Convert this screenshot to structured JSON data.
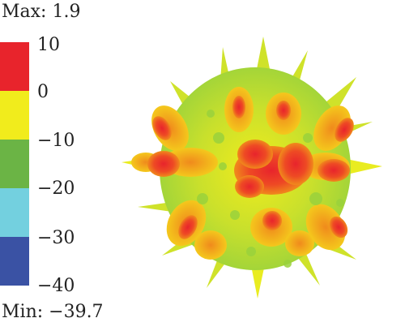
{
  "legend": {
    "max_label": "Max: 1.9",
    "min_label": "Min: −39.7",
    "ticks": [
      "10",
      "0",
      "−10",
      "−20",
      "−30",
      "−40"
    ],
    "colors": [
      "#e8242c",
      "#f1ec1c",
      "#6bb445",
      "#73d0df",
      "#3a52a4"
    ]
  },
  "plot": {
    "subject": "3d-radiation-pattern",
    "colors": {
      "high": "#e8242c",
      "mid_high": "#f08a1c",
      "mid": "#f1ec1c",
      "low": "#9ad23c"
    }
  }
}
